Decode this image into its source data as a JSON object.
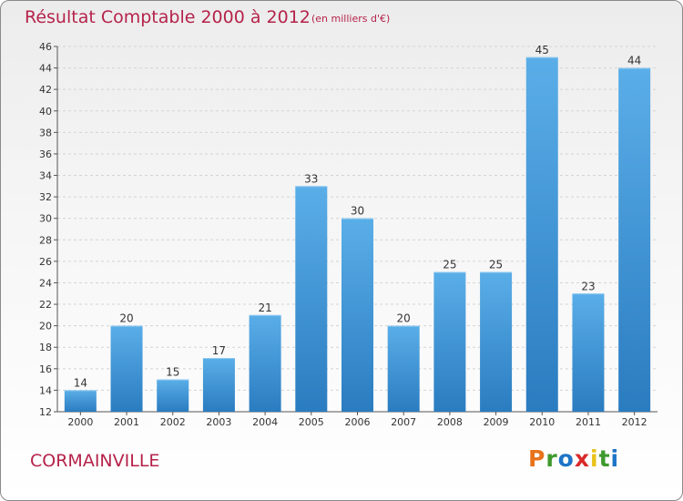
{
  "header": {
    "title": "Résultat Comptable 2000 à 2012",
    "unit": "(en milliers d'€)"
  },
  "footer": {
    "commune": "CORMAINVILLE",
    "logo_text": "Proxiti"
  },
  "colors": {
    "title": "#b5234a",
    "bar_light": "#5aaee8",
    "bar_dark": "#2a7cc0",
    "logo_letters": [
      "#e8731a",
      "#3f9a2e",
      "#1e74c6",
      "#d92a2a",
      "#e8c21a",
      "#3f9a2e",
      "#1e74c6"
    ]
  },
  "chart_data": {
    "type": "bar",
    "categories": [
      "2000",
      "2001",
      "2002",
      "2003",
      "2004",
      "2005",
      "2006",
      "2007",
      "2008",
      "2009",
      "2010",
      "2011",
      "2012"
    ],
    "values": [
      14,
      20,
      15,
      17,
      21,
      33,
      30,
      20,
      25,
      25,
      45,
      23,
      44
    ],
    "ylim": [
      12,
      46
    ],
    "yticks": [
      12,
      14,
      16,
      18,
      20,
      22,
      24,
      26,
      28,
      30,
      32,
      34,
      36,
      38,
      40,
      42,
      44,
      46
    ],
    "grid": true,
    "data_labels": true
  }
}
